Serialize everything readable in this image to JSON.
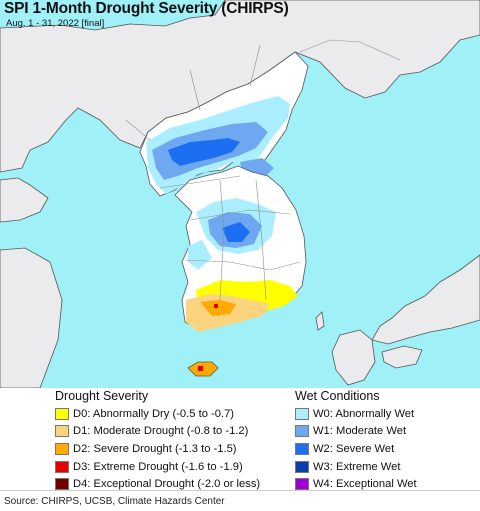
{
  "title": "SPI 1-Month Drought Severity (CHIRPS)",
  "subtitle": "Aug. 1 - 31, 2022 [final]",
  "map": {
    "colors": {
      "sea": "#9ff0f7",
      "land": "#ebebee",
      "land_outline": "#555555",
      "borders": "#9a9a9a",
      "region_white": "#ffffff"
    }
  },
  "legend": {
    "drought": {
      "title": "Drought Severity",
      "items": [
        {
          "label": "D0: Abnormally Dry (-0.5 to -0.7)",
          "color": "#ffff00"
        },
        {
          "label": "D1: Moderate Drought (-0.8 to -1.2)",
          "color": "#fcd37f"
        },
        {
          "label": "D2: Severe Drought (-1.3 to -1.5)",
          "color": "#ffaa00"
        },
        {
          "label": "D3: Extreme Drought (-1.6 to -1.9)",
          "color": "#e60000"
        },
        {
          "label": "D4: Exceptional Drought (-2.0 or less)",
          "color": "#730000"
        }
      ]
    },
    "wet": {
      "title": "Wet Conditions",
      "items": [
        {
          "label": "W0: Abnormally Wet",
          "color": "#aaeeff"
        },
        {
          "label": "W1: Moderate Wet",
          "color": "#6fa8f0"
        },
        {
          "label": "W2: Severe Wet",
          "color": "#1b6ff0"
        },
        {
          "label": "W3: Extreme Wet",
          "color": "#0a3fa8"
        },
        {
          "label": "W4: Exceptional Wet",
          "color": "#a000d8"
        }
      ]
    }
  },
  "source": "Source: CHIRPS, UCSB, Climate Hazards Center"
}
